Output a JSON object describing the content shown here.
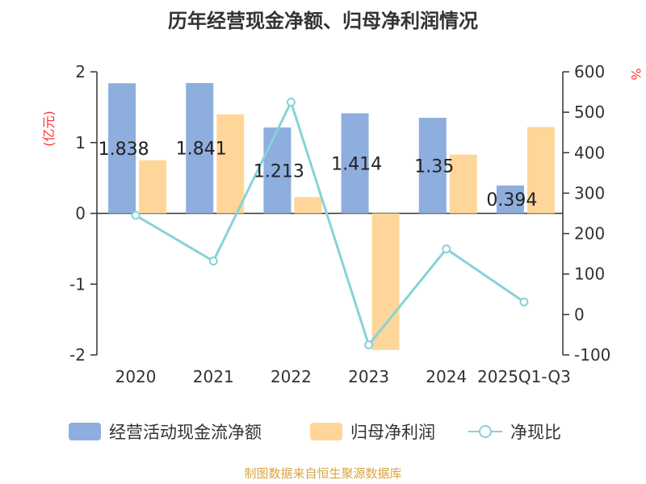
{
  "title": "历年经营现金净额、归母净利润情况",
  "footer": "制图数据来自恒生聚源数据库",
  "chart_data": {
    "type": "bar",
    "title": "历年经营现金净额、归母净利润情况",
    "categories": [
      "2020",
      "2021",
      "2022",
      "2023",
      "2024",
      "2025Q1-Q3"
    ],
    "left_axis": {
      "unit": "(亿元)",
      "ylim": [
        -2,
        2
      ],
      "ticks": [
        2,
        1,
        0,
        -1,
        -2
      ]
    },
    "right_axis": {
      "unit": "%",
      "ylim": [
        -100,
        600
      ],
      "ticks": [
        600,
        500,
        400,
        300,
        200,
        100,
        0,
        -100
      ]
    },
    "series": [
      {
        "name": "经营活动现金流净额",
        "type": "bar",
        "axis": "left",
        "color": "#8eaedd",
        "values": [
          1.838,
          1.841,
          1.213,
          1.414,
          1.35,
          0.394
        ],
        "labels": [
          "1.838",
          "1.841",
          "1.213",
          "1.414",
          "1.35",
          "0.394"
        ]
      },
      {
        "name": "归母净利润",
        "type": "bar",
        "axis": "left",
        "color": "#ffd699",
        "values": [
          0.75,
          1.4,
          0.23,
          -1.93,
          0.83,
          1.22
        ]
      },
      {
        "name": "净现比",
        "type": "line",
        "axis": "right",
        "color": "#86d3d8",
        "values": [
          245,
          132,
          525,
          -75,
          162,
          31
        ]
      }
    ],
    "grid": false,
    "legend_position": "bottom"
  }
}
